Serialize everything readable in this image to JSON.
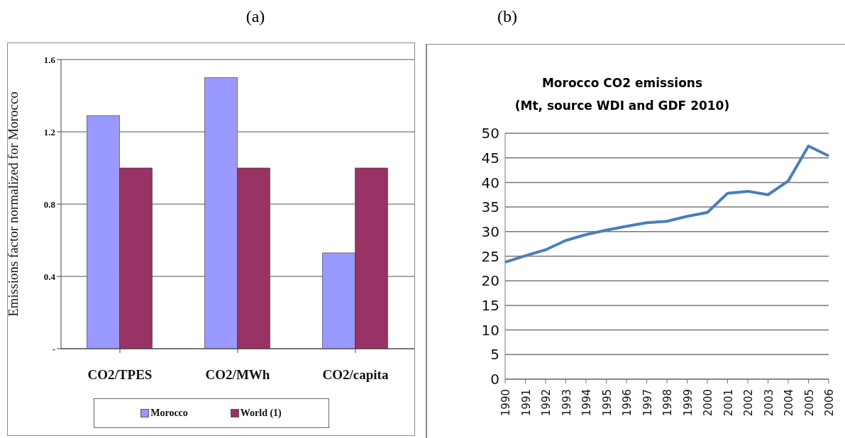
{
  "chart_data": [
    {
      "type": "bar",
      "annotations": [
        "(a)"
      ],
      "ylabel": "Emissions factor normalized for Morocco",
      "categories": [
        "CO2/TPES",
        "CO2/MWh",
        "CO2/capita"
      ],
      "series": [
        {
          "name": "Morocco",
          "color": "#9999ff",
          "values": [
            1.29,
            1.5,
            0.53
          ]
        },
        {
          "name": "World (1)",
          "color": "#993366",
          "values": [
            1.0,
            1.0,
            1.0
          ]
        }
      ],
      "ylim": [
        0,
        1.6
      ],
      "yticks": [
        {
          "value": 0,
          "label": "-"
        },
        0.4,
        0.8,
        1.2,
        1.6
      ],
      "grid": "y",
      "legend": "bottom"
    },
    {
      "type": "line",
      "annotations": [
        "(b)"
      ],
      "title": "Morocco CO2 emissions",
      "subtitle": "(Mt, source WDI and GDF 2010)",
      "categories": [
        "1990",
        "1991",
        "1992",
        "1993",
        "1994",
        "1995",
        "1996",
        "1997",
        "1998",
        "1999",
        "2000",
        "2001",
        "2002",
        "2003",
        "2004",
        "2005",
        "2006"
      ],
      "series": [
        {
          "color": "#4a7ebb",
          "values": [
            23.8,
            25.1,
            26.3,
            28.2,
            29.4,
            30.3,
            31.1,
            31.8,
            32.1,
            33.1,
            33.9,
            37.8,
            38.2,
            37.5,
            40.3,
            47.4,
            45.4
          ]
        }
      ],
      "ylim": [
        0,
        50
      ],
      "yticks": [
        0,
        5,
        10,
        15,
        20,
        25,
        30,
        35,
        40,
        45,
        50
      ],
      "grid": "y"
    }
  ]
}
